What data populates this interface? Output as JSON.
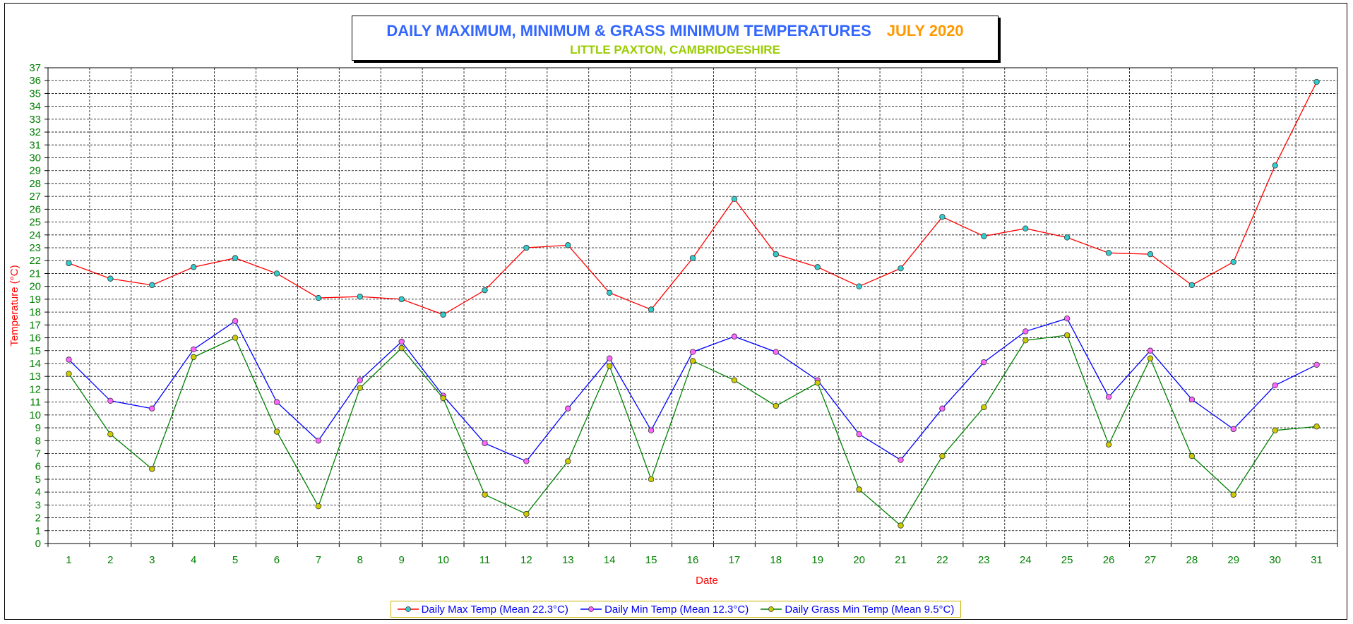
{
  "chart_data": {
    "type": "line",
    "title": "DAILY MAXIMUM, MINIMUM & GRASS MINIMUM TEMPERATURES",
    "title_suffix": "JULY 2020",
    "subtitle": "LITTLE PAXTON, CAMBRIDGESHIRE",
    "xlabel": "Date",
    "ylabel": "Temperature (°C)",
    "categories": [
      "1",
      "2",
      "3",
      "4",
      "5",
      "6",
      "7",
      "8",
      "9",
      "10",
      "11",
      "12",
      "13",
      "14",
      "15",
      "16",
      "17",
      "18",
      "19",
      "20",
      "21",
      "22",
      "23",
      "24",
      "25",
      "26",
      "27",
      "28",
      "29",
      "30",
      "31"
    ],
    "ylim": [
      0,
      37
    ],
    "ytick_step": 1,
    "grid": true,
    "legend_position": "bottom-center",
    "series": [
      {
        "name": "Daily Max Temp (Mean 22.3°C)",
        "color": "#ff0000",
        "marker_color": "#33cccc",
        "values": [
          21.8,
          20.6,
          20.1,
          21.5,
          22.2,
          21.0,
          19.1,
          19.2,
          19.0,
          17.8,
          19.7,
          23.0,
          23.2,
          19.5,
          18.2,
          22.2,
          26.8,
          22.5,
          21.5,
          20.0,
          21.4,
          25.4,
          23.9,
          24.5,
          23.8,
          22.6,
          22.5,
          20.1,
          21.9,
          29.4,
          35.9
        ]
      },
      {
        "name": "Daily Min Temp (Mean 12.3°C)",
        "color": "#0000ff",
        "marker_color": "#ff66ff",
        "values": [
          14.3,
          11.1,
          10.5,
          15.1,
          17.3,
          11.0,
          8.0,
          12.7,
          15.7,
          11.5,
          7.8,
          6.4,
          10.5,
          14.4,
          8.8,
          14.9,
          16.1,
          14.9,
          12.7,
          8.5,
          6.5,
          10.5,
          14.1,
          16.5,
          17.5,
          11.4,
          15.0,
          11.2,
          8.9,
          12.3,
          13.9
        ]
      },
      {
        "name": "Daily Grass Min Temp (Mean 9.5°C)",
        "color": "#008000",
        "marker_color": "#cccc00",
        "values": [
          13.2,
          8.5,
          5.8,
          14.5,
          16.0,
          8.7,
          2.9,
          12.1,
          15.2,
          11.3,
          3.8,
          2.3,
          6.4,
          13.8,
          5.0,
          14.2,
          12.7,
          10.7,
          12.5,
          4.2,
          1.4,
          6.8,
          10.6,
          15.8,
          16.2,
          7.7,
          14.4,
          6.8,
          3.8,
          8.8,
          9.1
        ]
      }
    ],
    "colors": {
      "title": "#3366ff",
      "title_suffix": "#ff9900",
      "subtitle": "#99cc00",
      "axis_text": "#008000",
      "axis_label": "#ff0000",
      "legend_text": "#0000ee"
    }
  }
}
